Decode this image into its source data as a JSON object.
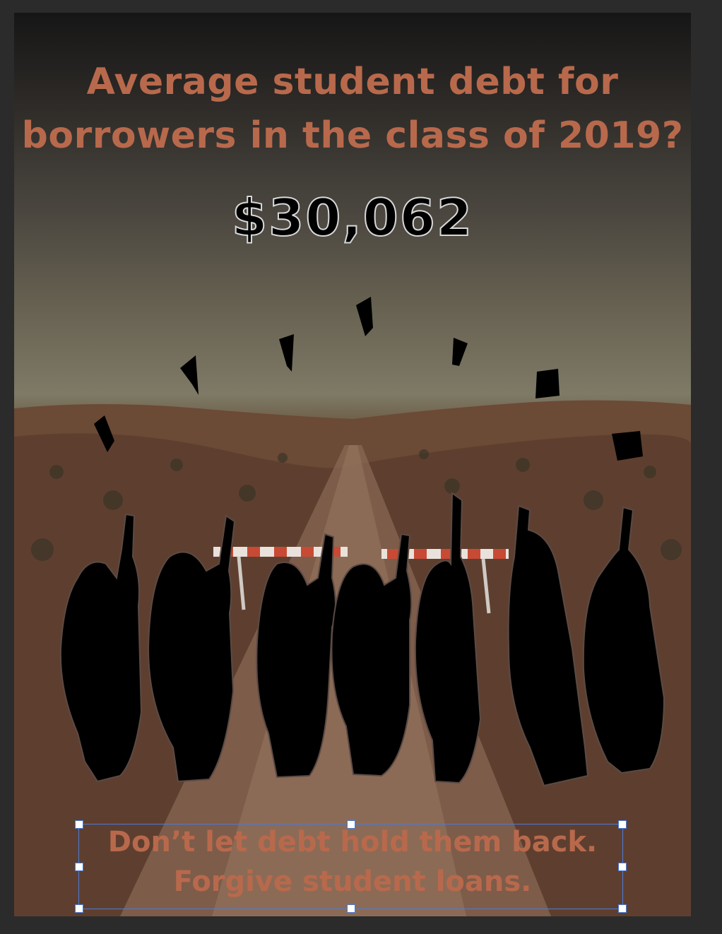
{
  "poster": {
    "headline_line1": "Average student debt for",
    "headline_line2": "borrowers in the class of 2019?",
    "amount": "$30,062",
    "tagline_line1": "Don’t let debt hold them back.",
    "tagline_line2": "Forgive student loans."
  },
  "icons": [
    "graduation-cap-icon",
    "graduate-silhouette-icon",
    "road-barrier-icon",
    "selection-handle-icon"
  ],
  "colors": {
    "headline": "#b8694c",
    "amount_fill": "#000000",
    "amount_stroke": "#d8d8d8",
    "selection": "#4a7bd8",
    "workspace": "#2b2b2b"
  }
}
